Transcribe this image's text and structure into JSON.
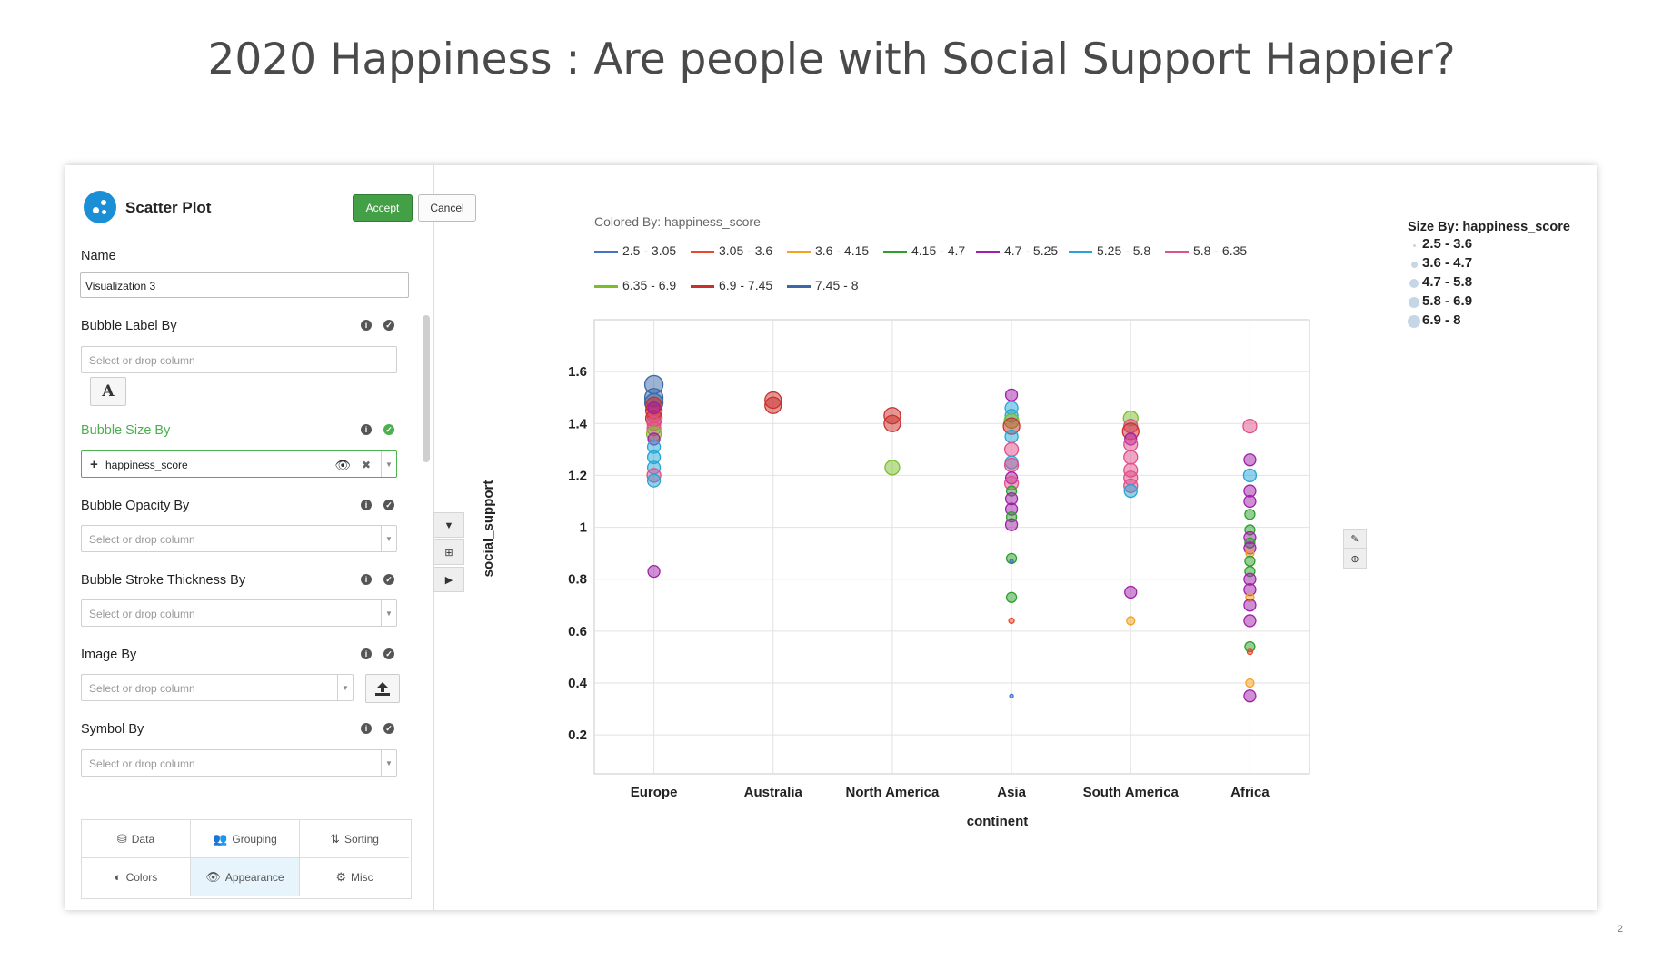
{
  "slide_title": "2020 Happiness : Are people with Social Support Happier?",
  "slide_number": "2",
  "panel": {
    "title": "Scatter Plot",
    "accept_label": "Accept",
    "cancel_label": "Cancel",
    "name_label": "Name",
    "name_value": "Visualization 3",
    "bubble_label_by": {
      "label": "Bubble Label By",
      "placeholder": "Select or drop column"
    },
    "bubble_size_by": {
      "label": "Bubble Size By",
      "value": "happiness_score"
    },
    "bubble_opacity_by": {
      "label": "Bubble Opacity By",
      "placeholder": "Select or drop column"
    },
    "bubble_stroke_by": {
      "label": "Bubble Stroke Thickness By",
      "placeholder": "Select or drop column"
    },
    "image_by": {
      "label": "Image By",
      "placeholder": "Select or drop column"
    },
    "symbol_by": {
      "label": "Symbol By",
      "placeholder": "Select or drop column"
    },
    "font_button": "A",
    "tabs": [
      {
        "label": "Data",
        "icon": "database-icon",
        "glyph": "⛁"
      },
      {
        "label": "Grouping",
        "icon": "group-icon",
        "glyph": "👥"
      },
      {
        "label": "Sorting",
        "icon": "sort-icon",
        "glyph": "⇅"
      },
      {
        "label": "Colors",
        "icon": "contrast-icon",
        "glyph": "◐"
      },
      {
        "label": "Appearance",
        "icon": "eye-icon",
        "glyph": "👁"
      },
      {
        "label": "Misc",
        "icon": "gear-icon",
        "glyph": "⚙"
      }
    ],
    "active_tab": "Appearance"
  },
  "colored_by": "Colored By: happiness_score",
  "color_legend": [
    {
      "label": "2.5 - 3.05",
      "color": "#4472c4"
    },
    {
      "label": "3.05 - 3.6",
      "color": "#e8492c"
    },
    {
      "label": "3.6 - 4.15",
      "color": "#f4a21f"
    },
    {
      "label": "4.15 - 4.7",
      "color": "#2ca02c"
    },
    {
      "label": "4.7 - 5.25",
      "color": "#a020a8"
    },
    {
      "label": "5.25 - 5.8",
      "color": "#26a5d6"
    },
    {
      "label": "5.8 - 6.35",
      "color": "#e0508a"
    },
    {
      "label": "6.35 - 6.9",
      "color": "#7cbd2a"
    },
    {
      "label": "6.9 - 7.45",
      "color": "#c9302c"
    },
    {
      "label": "7.45 - 8",
      "color": "#3a68a8"
    }
  ],
  "size_legend": {
    "title": "Size By: happiness_score",
    "items": [
      "2.5 - 3.6",
      "3.6 - 4.7",
      "4.7 - 5.8",
      "5.8 - 6.9",
      "6.9 - 8"
    ]
  },
  "chart_data": {
    "type": "scatter",
    "xlabel": "continent",
    "ylabel": "social_support",
    "categories": [
      "Europe",
      "Australia",
      "North America",
      "Asia",
      "South America",
      "Africa"
    ],
    "ylim": [
      0.05,
      1.8
    ],
    "yticks": [
      0.2,
      0.4,
      0.6,
      0.8,
      1,
      1.2,
      1.4,
      1.6
    ],
    "grid": true,
    "points": [
      {
        "x": "Europe",
        "y": 1.55,
        "bin": 9
      },
      {
        "x": "Europe",
        "y": 1.5,
        "bin": 9
      },
      {
        "x": "Europe",
        "y": 1.48,
        "bin": 9
      },
      {
        "x": "Europe",
        "y": 1.47,
        "bin": 8
      },
      {
        "x": "Europe",
        "y": 1.45,
        "bin": 8
      },
      {
        "x": "Europe",
        "y": 1.43,
        "bin": 6
      },
      {
        "x": "Europe",
        "y": 1.42,
        "bin": 8
      },
      {
        "x": "Europe",
        "y": 1.4,
        "bin": 6
      },
      {
        "x": "Europe",
        "y": 1.38,
        "bin": 6
      },
      {
        "x": "Europe",
        "y": 1.36,
        "bin": 7
      },
      {
        "x": "Europe",
        "y": 1.34,
        "bin": 4
      },
      {
        "x": "Europe",
        "y": 1.31,
        "bin": 5
      },
      {
        "x": "Europe",
        "y": 1.27,
        "bin": 5
      },
      {
        "x": "Europe",
        "y": 1.23,
        "bin": 5
      },
      {
        "x": "Europe",
        "y": 1.2,
        "bin": 6
      },
      {
        "x": "Europe",
        "y": 1.18,
        "bin": 5
      },
      {
        "x": "Europe",
        "y": 1.46,
        "bin": 4
      },
      {
        "x": "Europe",
        "y": 0.83,
        "bin": 4
      },
      {
        "x": "Australia",
        "y": 1.49,
        "bin": 8
      },
      {
        "x": "Australia",
        "y": 1.47,
        "bin": 8
      },
      {
        "x": "North America",
        "y": 1.43,
        "bin": 8
      },
      {
        "x": "North America",
        "y": 1.4,
        "bin": 8
      },
      {
        "x": "North America",
        "y": 1.23,
        "bin": 7
      },
      {
        "x": "Asia",
        "y": 1.51,
        "bin": 4
      },
      {
        "x": "Asia",
        "y": 1.46,
        "bin": 5
      },
      {
        "x": "Asia",
        "y": 1.43,
        "bin": 5
      },
      {
        "x": "Asia",
        "y": 1.41,
        "bin": 7
      },
      {
        "x": "Asia",
        "y": 1.39,
        "bin": 8
      },
      {
        "x": "Asia",
        "y": 1.35,
        "bin": 5
      },
      {
        "x": "Asia",
        "y": 1.3,
        "bin": 6
      },
      {
        "x": "Asia",
        "y": 1.25,
        "bin": 5
      },
      {
        "x": "Asia",
        "y": 1.24,
        "bin": 6
      },
      {
        "x": "Asia",
        "y": 1.19,
        "bin": 4
      },
      {
        "x": "Asia",
        "y": 1.17,
        "bin": 6
      },
      {
        "x": "Asia",
        "y": 1.14,
        "bin": 3
      },
      {
        "x": "Asia",
        "y": 1.11,
        "bin": 4
      },
      {
        "x": "Asia",
        "y": 1.07,
        "bin": 4
      },
      {
        "x": "Asia",
        "y": 1.04,
        "bin": 3
      },
      {
        "x": "Asia",
        "y": 1.01,
        "bin": 4
      },
      {
        "x": "Asia",
        "y": 0.88,
        "bin": 3
      },
      {
        "x": "Asia",
        "y": 0.87,
        "bin": 0
      },
      {
        "x": "Asia",
        "y": 0.73,
        "bin": 3
      },
      {
        "x": "Asia",
        "y": 0.64,
        "bin": 1
      },
      {
        "x": "Asia",
        "y": 0.35,
        "bin": 0
      },
      {
        "x": "South America",
        "y": 1.42,
        "bin": 7
      },
      {
        "x": "South America",
        "y": 1.39,
        "bin": 6
      },
      {
        "x": "South America",
        "y": 1.37,
        "bin": 8
      },
      {
        "x": "South America",
        "y": 1.34,
        "bin": 4
      },
      {
        "x": "South America",
        "y": 1.32,
        "bin": 6
      },
      {
        "x": "South America",
        "y": 1.27,
        "bin": 6
      },
      {
        "x": "South America",
        "y": 1.22,
        "bin": 6
      },
      {
        "x": "South America",
        "y": 1.19,
        "bin": 6
      },
      {
        "x": "South America",
        "y": 1.16,
        "bin": 6
      },
      {
        "x": "South America",
        "y": 1.14,
        "bin": 5
      },
      {
        "x": "South America",
        "y": 0.75,
        "bin": 4
      },
      {
        "x": "South America",
        "y": 0.64,
        "bin": 2
      },
      {
        "x": "Africa",
        "y": 1.39,
        "bin": 6
      },
      {
        "x": "Africa",
        "y": 1.26,
        "bin": 4
      },
      {
        "x": "Africa",
        "y": 1.2,
        "bin": 5
      },
      {
        "x": "Africa",
        "y": 1.14,
        "bin": 4
      },
      {
        "x": "Africa",
        "y": 1.1,
        "bin": 4
      },
      {
        "x": "Africa",
        "y": 1.05,
        "bin": 3
      },
      {
        "x": "Africa",
        "y": 0.99,
        "bin": 3
      },
      {
        "x": "Africa",
        "y": 0.96,
        "bin": 4
      },
      {
        "x": "Africa",
        "y": 0.94,
        "bin": 3
      },
      {
        "x": "Africa",
        "y": 0.92,
        "bin": 4
      },
      {
        "x": "Africa",
        "y": 0.9,
        "bin": 2
      },
      {
        "x": "Africa",
        "y": 0.87,
        "bin": 3
      },
      {
        "x": "Africa",
        "y": 0.83,
        "bin": 3
      },
      {
        "x": "Africa",
        "y": 0.8,
        "bin": 4
      },
      {
        "x": "Africa",
        "y": 0.76,
        "bin": 4
      },
      {
        "x": "Africa",
        "y": 0.73,
        "bin": 2
      },
      {
        "x": "Africa",
        "y": 0.7,
        "bin": 4
      },
      {
        "x": "Africa",
        "y": 0.64,
        "bin": 4
      },
      {
        "x": "Africa",
        "y": 0.54,
        "bin": 3
      },
      {
        "x": "Africa",
        "y": 0.52,
        "bin": 1
      },
      {
        "x": "Africa",
        "y": 0.4,
        "bin": 2
      },
      {
        "x": "Africa",
        "y": 0.35,
        "bin": 4
      }
    ]
  }
}
